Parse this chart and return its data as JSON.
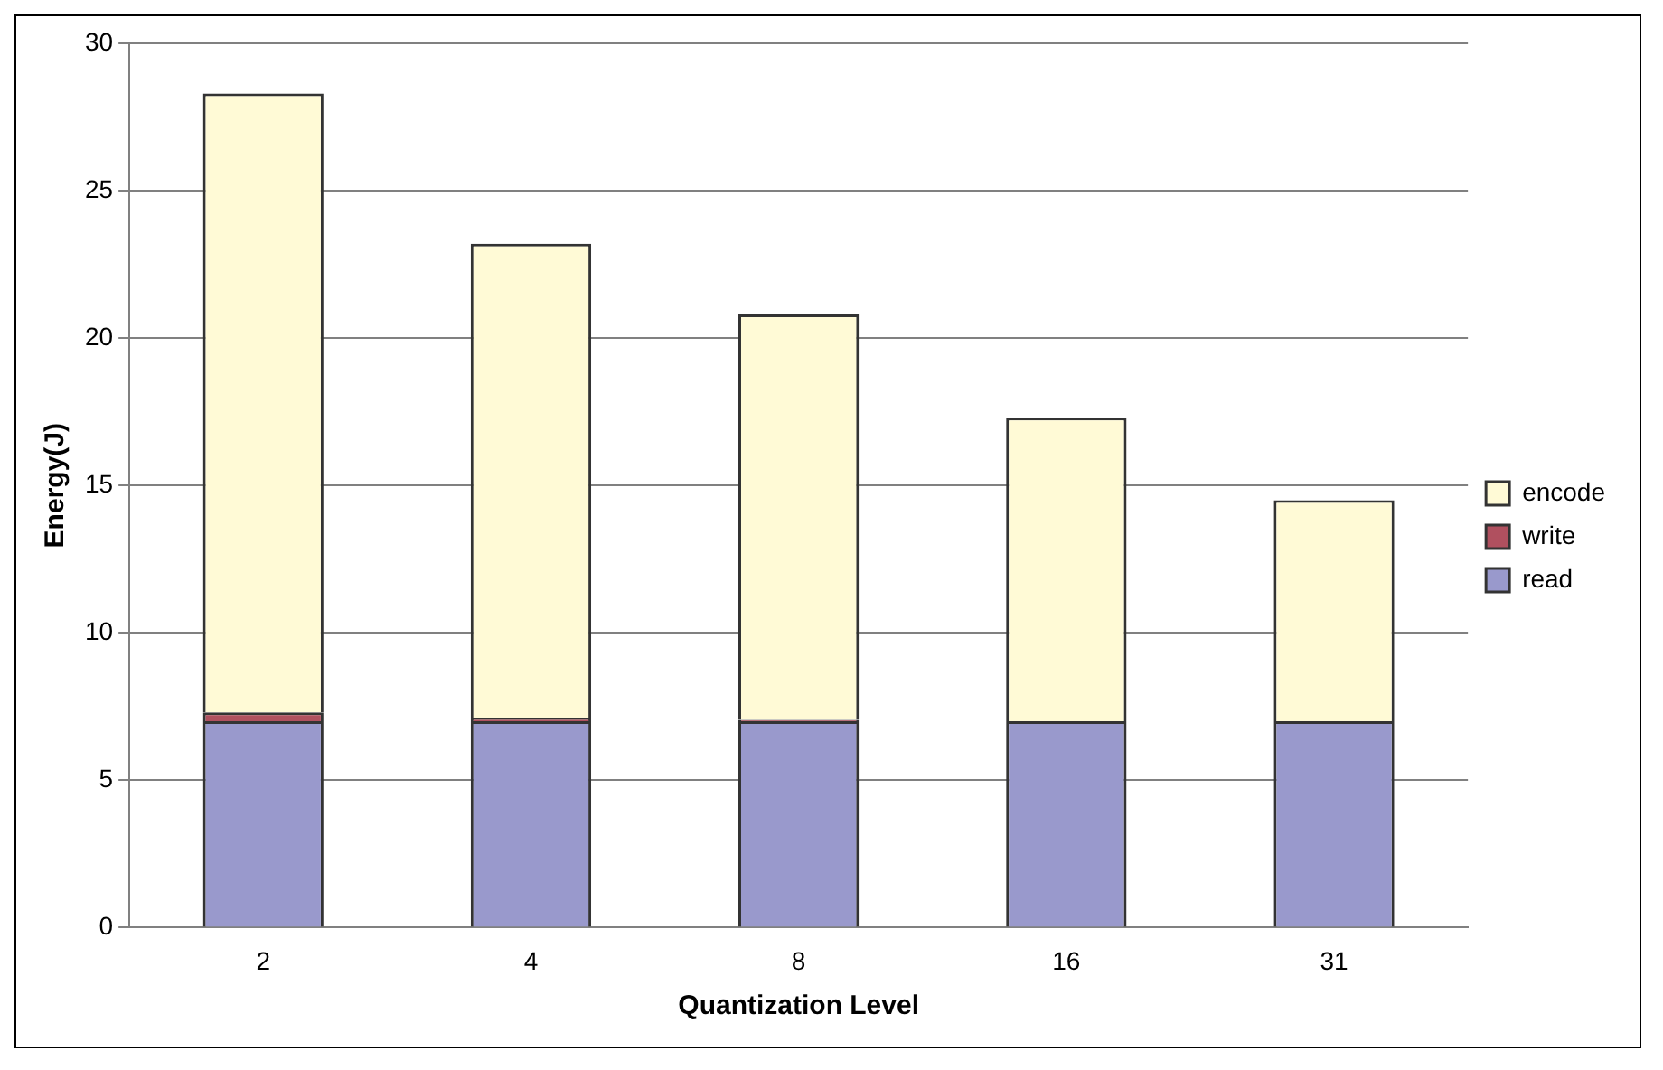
{
  "chart_data": {
    "type": "bar",
    "xlabel": "Quantization Level",
    "ylabel": "Energy(J)",
    "categories": [
      "2",
      "4",
      "8",
      "16",
      "31"
    ],
    "stacked": true,
    "series": [
      {
        "name": "read",
        "color": "#9999cc",
        "values": [
          7.0,
          7.0,
          7.0,
          7.0,
          7.0
        ]
      },
      {
        "name": "write",
        "color": "#b0505f",
        "values": [
          0.3,
          0.1,
          0.05,
          0,
          0
        ]
      },
      {
        "name": "encode",
        "color": "#fffad6",
        "values": [
          21.0,
          16.1,
          13.75,
          10.3,
          7.5
        ]
      }
    ],
    "ylim": [
      0,
      30
    ],
    "yticks": [
      0,
      5,
      10,
      15,
      20,
      25,
      30
    ],
    "grid": "y",
    "legend": "right"
  }
}
